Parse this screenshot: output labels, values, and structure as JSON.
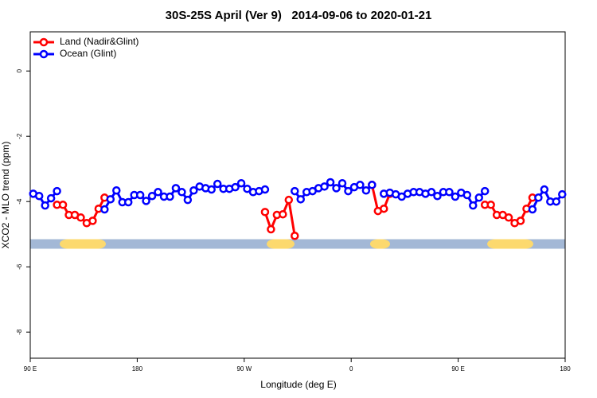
{
  "chart_data": {
    "type": "line",
    "title": "30S-25S April (Ver 9)   2014-09-06 to 2020-01-21",
    "xlabel": "Longitude (deg E)",
    "ylabel": "XCO2 - MLO trend (ppm)",
    "xlim": [
      90,
      540
    ],
    "ylim": [
      -8.8,
      1.2
    ],
    "xticks": [
      {
        "value": 90,
        "label": "90 E"
      },
      180,
      {
        "value": 270,
        "label": "90 W"
      },
      {
        "value": 360,
        "label": "0"
      },
      {
        "value": 450,
        "label": "90 E"
      },
      {
        "value": 540,
        "label": "180"
      }
    ],
    "yticks": [
      0,
      -2,
      -4,
      -6,
      -8
    ],
    "legend": "top-left",
    "surface_strip": {
      "y": -5.3,
      "ocean_color": "#a3b8d6",
      "land_color": "#fcd96e",
      "land_ranges": [
        [
          114.8,
          153.6
        ],
        [
          288.9,
          312.3
        ],
        [
          375.9,
          392.7
        ],
        [
          474.4,
          513.2
        ]
      ]
    },
    "series": [
      {
        "name": "Land (Nadir&Glint)",
        "color": "#ff0000",
        "x": [
          112.5,
          117.5,
          122.5,
          127.5,
          132.5,
          137.5,
          142.5,
          147.5,
          152.5,
          157.5,
          287.5,
          292.5,
          297.5,
          302.5,
          307.5,
          312.5,
          317.5,
          377.5,
          382.5,
          387.5,
          392.5,
          397.5,
          472.5,
          477.5,
          482.5,
          487.5,
          492.5,
          497.5,
          502.5,
          507.5,
          512.5
        ],
        "values": [
          -4.1,
          -4.1,
          -4.41,
          -4.41,
          -4.49,
          -4.66,
          -4.59,
          -4.22,
          -3.88,
          null,
          -4.32,
          -4.85,
          -4.41,
          -4.39,
          -3.95,
          -5.05,
          null,
          -3.49,
          -4.29,
          -4.22,
          -3.76,
          null,
          -4.1,
          -4.1,
          -4.41,
          -4.41,
          -4.49,
          -4.66,
          -4.59,
          -4.22,
          -3.88
        ]
      },
      {
        "name": "Ocean (Glint)",
        "color": "#0000ff",
        "x": [
          92.5,
          97.5,
          102.5,
          107.5,
          112.5,
          117.5,
          152.5,
          157.5,
          162.5,
          167.5,
          172.5,
          177.5,
          182.5,
          187.5,
          192.5,
          197.5,
          202.5,
          207.5,
          212.5,
          217.5,
          222.5,
          227.5,
          232.5,
          237.5,
          242.5,
          247.5,
          252.5,
          257.5,
          262.5,
          267.5,
          272.5,
          277.5,
          282.5,
          287.5,
          292.5,
          312.5,
          317.5,
          322.5,
          327.5,
          332.5,
          337.5,
          342.5,
          347.5,
          352.5,
          357.5,
          362.5,
          367.5,
          372.5,
          377.5,
          382.5,
          387.5,
          392.5,
          397.5,
          402.5,
          407.5,
          412.5,
          417.5,
          422.5,
          427.5,
          432.5,
          437.5,
          442.5,
          447.5,
          452.5,
          457.5,
          462.5,
          467.5,
          472.5,
          477.5,
          512.5,
          517.5,
          522.5,
          527.5,
          532.5,
          537.5
        ],
        "values": [
          -3.76,
          -3.83,
          -4.12,
          -3.9,
          -3.68,
          null,
          -4.24,
          -3.93,
          -3.66,
          -4.02,
          -4.02,
          -3.8,
          -3.8,
          -3.98,
          -3.83,
          -3.71,
          -3.85,
          -3.85,
          -3.59,
          -3.71,
          -3.95,
          -3.66,
          -3.54,
          -3.59,
          -3.63,
          -3.46,
          -3.61,
          -3.61,
          -3.56,
          -3.44,
          -3.61,
          -3.71,
          -3.68,
          -3.63,
          null,
          -3.68,
          -3.93,
          -3.71,
          -3.68,
          -3.59,
          -3.54,
          -3.41,
          -3.59,
          -3.44,
          -3.68,
          -3.56,
          -3.49,
          -3.66,
          -3.49,
          null,
          -3.76,
          -3.73,
          -3.78,
          -3.85,
          -3.76,
          -3.71,
          -3.71,
          -3.76,
          -3.71,
          -3.83,
          -3.71,
          -3.71,
          -3.85,
          -3.73,
          -3.8,
          -4.12,
          -3.88,
          -3.68,
          null,
          -4.24,
          -3.88,
          -3.63,
          -4.0,
          -4.0,
          -3.78
        ]
      }
    ]
  }
}
